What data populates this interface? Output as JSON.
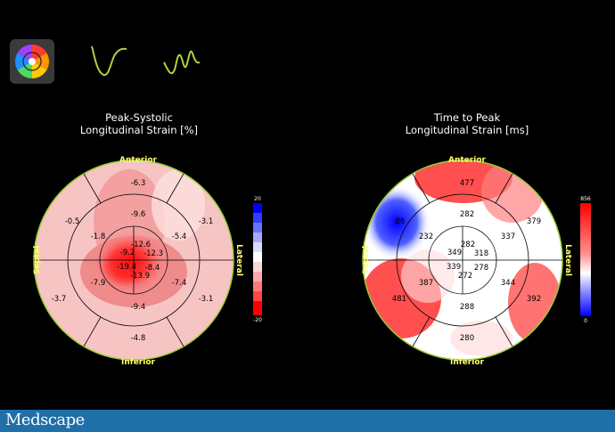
{
  "left": {
    "title_line1": "Peak-Systolic",
    "title_line2": "Longitudinal Strain [%]",
    "labels": {
      "anterior": "Anterior",
      "inferior": "Inferior",
      "septal": "Septal",
      "lateral": "Lateral"
    },
    "scale_max": "20",
    "scale_min": "-20",
    "values": {
      "basal": [
        "-6.3",
        "-3.1",
        "-3.1",
        "-4.8",
        "-3.7",
        "-0.5"
      ],
      "mid": [
        "-9.6",
        "-5.4",
        "-7.4",
        "-9.4",
        "-7.9",
        "-1.8"
      ],
      "apical": [
        "-12.6",
        "-12.3",
        "-8.4",
        "-13.9",
        "-19.4",
        "-9.2"
      ]
    }
  },
  "right": {
    "title_line1": "Time to Peak",
    "title_line2": "Longitudinal Strain [ms]",
    "labels": {
      "anterior": "Anterior",
      "inferior": "Inferior",
      "septal": "Septal",
      "lateral": "Lateral"
    },
    "scale_max": "856",
    "scale_min": "0",
    "values": {
      "basal": [
        "477",
        "379",
        "392",
        "280",
        "481",
        "86"
      ],
      "mid": [
        "282",
        "337",
        "344",
        "288",
        "387",
        "232"
      ],
      "apical": [
        "282",
        "318",
        "278",
        "272",
        "339",
        "349"
      ]
    }
  },
  "footer": {
    "logo": "Medscape"
  },
  "colors": {
    "left_scale_top": "#0000ff",
    "left_scale_bottom": "#ff0000",
    "right_scale_top": "#ff0000",
    "right_scale_bottom": "#0000ff",
    "ring": "#9acd32",
    "label": "#ffff66"
  }
}
